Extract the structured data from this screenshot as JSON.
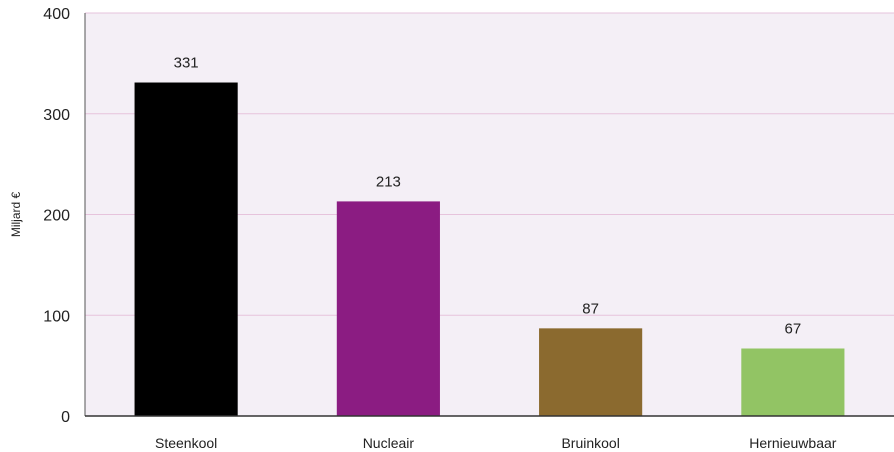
{
  "chart_data": {
    "type": "bar",
    "title": "",
    "xlabel": "",
    "ylabel": "Miljard €",
    "ylim": [
      0,
      400
    ],
    "yticks": [
      0,
      100,
      200,
      300,
      400
    ],
    "grid": true,
    "legend": "none",
    "categories": [
      "Steenkool",
      "Nucleair",
      "Bruinkool",
      "Hernieuwbaar"
    ],
    "values": [
      331,
      213,
      87,
      67
    ],
    "data_labels": [
      "331",
      "213",
      "87",
      "67"
    ],
    "colors": [
      "#000000",
      "#8b1c82",
      "#8b6a2f",
      "#92c464"
    ],
    "plot_background": "#f4eff6",
    "grid_color": "#e6c3dc"
  }
}
